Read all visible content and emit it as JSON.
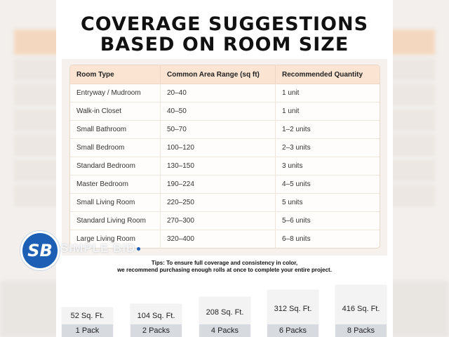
{
  "title": {
    "line1": "COVERAGE SUGGESTIONS",
    "line2": "BASED ON ROOM SIZE"
  },
  "table": {
    "headers": [
      "Room Type",
      "Common Area Range (sq ft)",
      "Recommended Quantity"
    ],
    "rows": [
      [
        "Entryway / Mudroom",
        "20–40",
        "1 unit"
      ],
      [
        "Walk-in Closet",
        "40–50",
        "1 unit"
      ],
      [
        "Small Bathroom",
        "50–70",
        "1–2 units"
      ],
      [
        "Small Bedroom",
        "100–120",
        "2–3 units"
      ],
      [
        "Standard Bedroom",
        "130–150",
        "3 units"
      ],
      [
        "Master Bedroom",
        "190–224",
        "4–5 units"
      ],
      [
        "Small Living Room",
        "220–250",
        "5 units"
      ],
      [
        "Standard Living Room",
        "270–300",
        "5–6 units"
      ],
      [
        "Large Living Room",
        "320–400",
        "6–8 units"
      ]
    ]
  },
  "tips": {
    "line1": "Tips: To ensure full coverage and consistency in color,",
    "line2": "we recommend purchasing enough rolls at once to complete your entire project."
  },
  "packs": [
    {
      "area": "52 Sq. Ft.",
      "count": "1 Pack"
    },
    {
      "area": "104 Sq. Ft.",
      "count": "2 Packs"
    },
    {
      "area": "208 Sq. Ft.",
      "count": "4 Packs"
    },
    {
      "area": "312 Sq. Ft.",
      "count": "6 Packs"
    },
    {
      "area": "416 Sq. Ft.",
      "count": "8 Packs"
    }
  ],
  "logo": {
    "text": "SB",
    "watermark": "SIMPLE BID",
    "icon": "sb-logo-icon",
    "brand_color": "#1d5fb5"
  },
  "colors": {
    "header_bg": "#fbe5d2",
    "pack_label_bg": "#d7dadf"
  }
}
